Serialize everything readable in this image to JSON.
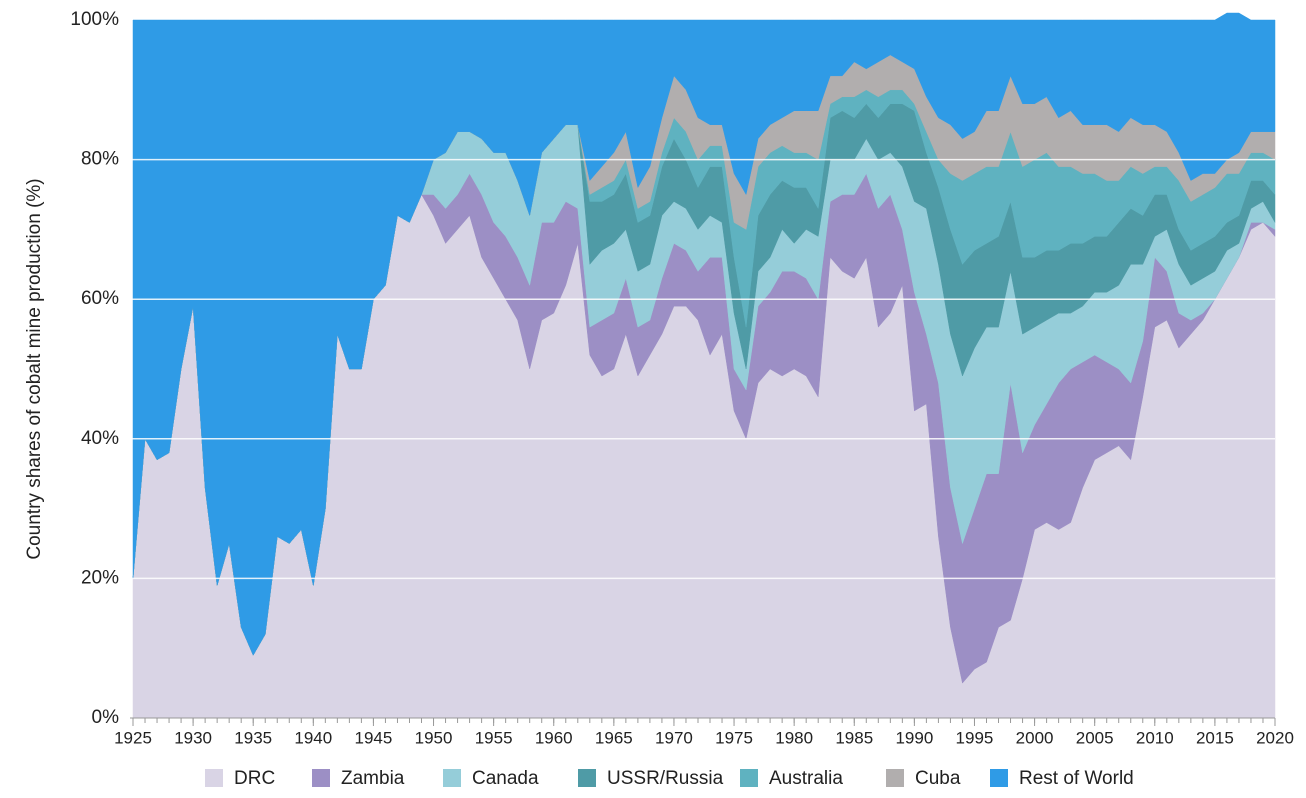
{
  "chart_data": {
    "type": "stacked_area",
    "ylabel": "Country shares of cobalt mine production (%)",
    "x": [
      1925,
      1926,
      1927,
      1928,
      1929,
      1930,
      1931,
      1932,
      1933,
      1934,
      1935,
      1936,
      1937,
      1938,
      1939,
      1940,
      1941,
      1942,
      1943,
      1944,
      1945,
      1946,
      1947,
      1948,
      1949,
      1950,
      1951,
      1952,
      1953,
      1954,
      1955,
      1956,
      1957,
      1958,
      1959,
      1960,
      1961,
      1962,
      1963,
      1964,
      1965,
      1966,
      1967,
      1968,
      1969,
      1970,
      1971,
      1972,
      1973,
      1974,
      1975,
      1976,
      1977,
      1978,
      1979,
      1980,
      1981,
      1982,
      1983,
      1984,
      1985,
      1986,
      1987,
      1988,
      1989,
      1990,
      1991,
      1992,
      1993,
      1994,
      1995,
      1996,
      1997,
      1998,
      1999,
      2000,
      2001,
      2002,
      2003,
      2004,
      2005,
      2006,
      2007,
      2008,
      2009,
      2010,
      2011,
      2012,
      2013,
      2014,
      2015,
      2016,
      2017,
      2018,
      2019,
      2020
    ],
    "xlim": [
      1925,
      2020
    ],
    "xticks": [
      1925,
      1930,
      1935,
      1940,
      1945,
      1950,
      1955,
      1960,
      1965,
      1970,
      1975,
      1980,
      1985,
      1990,
      1995,
      2000,
      2005,
      2010,
      2015,
      2020
    ],
    "ylim": [
      0,
      100
    ],
    "yticks": [
      {
        "value": 0,
        "label": "0%"
      },
      {
        "value": 20,
        "label": "20%"
      },
      {
        "value": 40,
        "label": "40%"
      },
      {
        "value": 60,
        "label": "60%"
      },
      {
        "value": 80,
        "label": "80%"
      },
      {
        "value": 100,
        "label": "100%"
      }
    ],
    "grid": true,
    "legend": "bottom",
    "series": [
      {
        "name": "DRC",
        "color": "#d9d4e5",
        "values": [
          20,
          40,
          37,
          38,
          50,
          59,
          33,
          19,
          25,
          13,
          9,
          12,
          26,
          25,
          27,
          19,
          30,
          55,
          50,
          50,
          60,
          62,
          72,
          71,
          75,
          72,
          68,
          70,
          72,
          66,
          63,
          60,
          57,
          50,
          57,
          58,
          62,
          68,
          52,
          49,
          50,
          55,
          49,
          52,
          55,
          59,
          59,
          57,
          52,
          55,
          44,
          40,
          48,
          50,
          49,
          50,
          49,
          46,
          66,
          64,
          63,
          66,
          56,
          58,
          62,
          44,
          45,
          26,
          13,
          5,
          7,
          8,
          13,
          14,
          20,
          27,
          28,
          27,
          28,
          33,
          37,
          38,
          39,
          37,
          46,
          56,
          57,
          53,
          55,
          57,
          60,
          63,
          66,
          70,
          71,
          69
        ]
      },
      {
        "name": "Zambia",
        "color": "#9c8fc5",
        "values": [
          0,
          0,
          0,
          0,
          0,
          0,
          0,
          0,
          0,
          0,
          0,
          0,
          0,
          0,
          0,
          0,
          0,
          0,
          0,
          0,
          0,
          0,
          0,
          0,
          0,
          3,
          5,
          5,
          6,
          9,
          8,
          9,
          9,
          12,
          14,
          13,
          12,
          5,
          4,
          8,
          8,
          8,
          7,
          5,
          8,
          9,
          8,
          7,
          14,
          11,
          6,
          7,
          11,
          11,
          15,
          14,
          14,
          14,
          8,
          11,
          12,
          12,
          17,
          17,
          8,
          17,
          10,
          22,
          20,
          20,
          23,
          27,
          22,
          34,
          18,
          15,
          17,
          21,
          22,
          18,
          15,
          13,
          11,
          11,
          8,
          10,
          7,
          5,
          2,
          1,
          0,
          0,
          0,
          1,
          0,
          1
        ]
      },
      {
        "name": "Canada",
        "color": "#95cdd9",
        "values": [
          0,
          0,
          0,
          0,
          0,
          0,
          0,
          0,
          0,
          0,
          0,
          0,
          0,
          0,
          0,
          0,
          0,
          0,
          0,
          0,
          0,
          0,
          0,
          0,
          0,
          5,
          8,
          9,
          6,
          8,
          10,
          12,
          11,
          10,
          10,
          12,
          11,
          12,
          9,
          10,
          10,
          7,
          8,
          8,
          9,
          6,
          6,
          6,
          6,
          5,
          8,
          3,
          5,
          5,
          6,
          4,
          7,
          9,
          6,
          5,
          5,
          5,
          7,
          6,
          9,
          13,
          18,
          17,
          22,
          24,
          23,
          21,
          21,
          16,
          17,
          14,
          12,
          10,
          8,
          8,
          9,
          10,
          12,
          17,
          11,
          3,
          6,
          7,
          5,
          5,
          4,
          4,
          2,
          2,
          3,
          1
        ]
      },
      {
        "name": "USSR/Russia",
        "color": "#4f9ba6",
        "values": [
          0,
          0,
          0,
          0,
          0,
          0,
          0,
          0,
          0,
          0,
          0,
          0,
          0,
          0,
          0,
          0,
          0,
          0,
          0,
          0,
          0,
          0,
          0,
          0,
          0,
          0,
          0,
          0,
          0,
          0,
          0,
          0,
          0,
          0,
          0,
          0,
          0,
          0,
          9,
          7,
          7,
          8,
          7,
          7,
          7,
          9,
          7,
          6,
          7,
          8,
          8,
          6,
          8,
          9,
          7,
          8,
          6,
          4,
          6,
          7,
          6,
          5,
          6,
          7,
          9,
          13,
          8,
          11,
          15,
          16,
          14,
          12,
          13,
          10,
          11,
          10,
          10,
          9,
          10,
          9,
          8,
          8,
          9,
          8,
          7,
          6,
          5,
          5,
          5,
          5,
          5,
          4,
          4,
          4,
          3,
          4
        ]
      },
      {
        "name": "Australia",
        "color": "#5fb2c0",
        "values": [
          0,
          0,
          0,
          0,
          0,
          0,
          0,
          0,
          0,
          0,
          0,
          0,
          0,
          0,
          0,
          0,
          0,
          0,
          0,
          0,
          0,
          0,
          0,
          0,
          0,
          0,
          0,
          0,
          0,
          0,
          0,
          0,
          0,
          0,
          0,
          0,
          0,
          0,
          1,
          2,
          2,
          2,
          2,
          2,
          2,
          3,
          4,
          4,
          3,
          3,
          5,
          14,
          7,
          6,
          5,
          5,
          5,
          7,
          2,
          2,
          3,
          2,
          3,
          2,
          2,
          1,
          3,
          4,
          8,
          12,
          11,
          11,
          10,
          10,
          13,
          14,
          14,
          12,
          11,
          10,
          9,
          8,
          6,
          6,
          6,
          4,
          4,
          7,
          7,
          7,
          7,
          7,
          6,
          4,
          4,
          5
        ]
      },
      {
        "name": "Cuba",
        "color": "#b1aeae",
        "values": [
          0,
          0,
          0,
          0,
          0,
          0,
          0,
          0,
          0,
          0,
          0,
          0,
          0,
          0,
          0,
          0,
          0,
          0,
          0,
          0,
          0,
          0,
          0,
          0,
          0,
          0,
          0,
          0,
          0,
          0,
          0,
          0,
          0,
          0,
          0,
          0,
          0,
          0,
          2,
          3,
          4,
          4,
          3,
          5,
          5,
          6,
          6,
          6,
          3,
          3,
          7,
          5,
          4,
          4,
          4,
          6,
          6,
          7,
          4,
          3,
          5,
          3,
          5,
          5,
          4,
          5,
          5,
          6,
          7,
          6,
          6,
          8,
          8,
          8,
          9,
          8,
          8,
          7,
          8,
          7,
          7,
          8,
          7,
          7,
          7,
          6,
          5,
          4,
          3,
          3,
          2,
          2,
          3,
          3,
          3,
          4
        ]
      },
      {
        "name": "Rest of World",
        "color": "#2f9be6",
        "values": [
          80,
          60,
          63,
          62,
          50,
          41,
          67,
          81,
          75,
          87,
          91,
          88,
          74,
          75,
          73,
          81,
          70,
          45,
          50,
          50,
          40,
          38,
          28,
          29,
          25,
          20,
          19,
          16,
          16,
          17,
          19,
          19,
          23,
          28,
          19,
          17,
          15,
          15,
          23,
          21,
          19,
          16,
          24,
          21,
          14,
          8,
          10,
          14,
          15,
          15,
          22,
          25,
          17,
          15,
          14,
          13,
          13,
          13,
          8,
          8,
          6,
          7,
          6,
          5,
          6,
          7,
          11,
          14,
          15,
          17,
          16,
          13,
          13,
          8,
          12,
          12,
          11,
          14,
          13,
          15,
          15,
          15,
          16,
          14,
          15,
          15,
          16,
          19,
          23,
          22,
          22,
          21,
          20,
          16,
          16,
          16
        ]
      }
    ]
  }
}
